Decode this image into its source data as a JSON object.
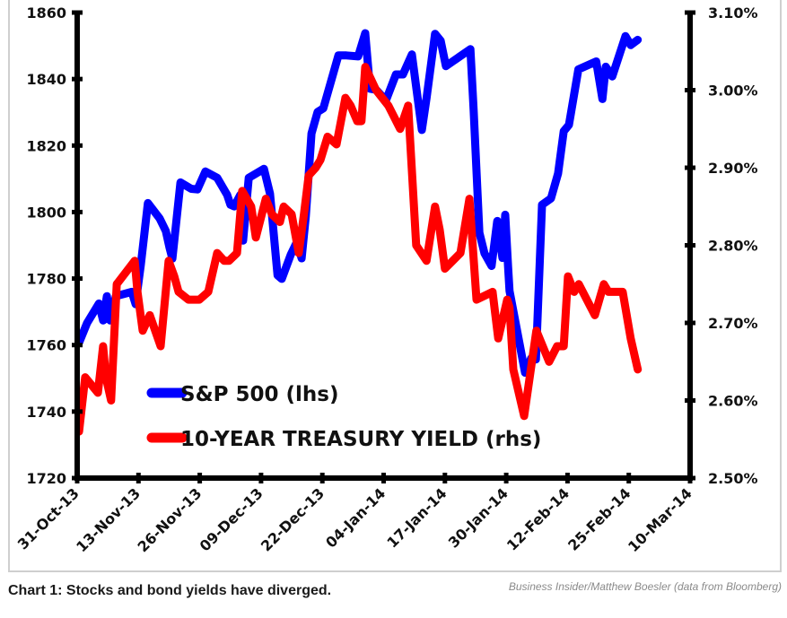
{
  "chart_data": {
    "type": "line",
    "title": "",
    "xlabel": "",
    "ylabel": "",
    "x_axis": {
      "type": "date",
      "start_day_offset": 0,
      "end_day_offset": 130,
      "tick_step_days": 13,
      "tick_labels": [
        "31-Oct-13",
        "13-Nov-13",
        "26-Nov-13",
        "09-Dec-13",
        "22-Dec-13",
        "04-Jan-14",
        "17-Jan-14",
        "30-Jan-14",
        "12-Feb-14",
        "25-Feb-14",
        "10-Mar-14"
      ]
    },
    "y_left": {
      "ylim": [
        1720,
        1860
      ],
      "tick_values": [
        1720,
        1740,
        1760,
        1780,
        1800,
        1820,
        1840,
        1860
      ],
      "tick_labels": [
        "1720",
        "1740",
        "1760",
        "1780",
        "1800",
        "1820",
        "1840",
        "1860"
      ]
    },
    "y_right": {
      "ylim": [
        2.5,
        3.1
      ],
      "tick_values": [
        2.5,
        2.6,
        2.7,
        2.8,
        2.9,
        3.0,
        3.1
      ],
      "tick_labels": [
        "2.50%",
        "2.60%",
        "2.70%",
        "2.80%",
        "2.90%",
        "3.00%",
        "3.10%"
      ]
    },
    "grid": false,
    "legend_position": "bottom-left",
    "series": [
      {
        "name": "S&P 500 (lhs)",
        "axis": "left",
        "color": "#0000ff",
        "x": [
          0.4,
          2.1,
          4.6,
          5.5,
          6.3,
          7.0,
          8.2,
          11.6,
          12.4,
          13.5,
          15.0,
          17.5,
          18.8,
          19.6,
          20.2,
          21.9,
          24.2,
          25.5,
          27.2,
          29.7,
          31.8,
          32.5,
          33.3,
          34.6,
          35.2,
          36.4,
          39.6,
          40.9,
          42.5,
          43.4,
          45.3,
          46.6,
          47.6,
          48.5,
          49.7,
          51.0,
          52.2,
          55.4,
          57.1,
          59.6,
          61.1,
          62.1,
          63.4,
          65.5,
          67.6,
          69.1,
          71.0,
          73.1,
          74.1,
          75.9,
          77.1,
          78.2,
          83.4,
          84.1,
          85.3,
          86.4,
          87.9,
          89.1,
          90.2,
          90.8,
          91.4,
          91.7,
          95.0,
          96.3,
          97.3,
          98.6,
          100.5,
          102.0,
          103.2,
          104.3,
          106.3,
          110.1,
          111.4,
          112.1,
          113.5,
          116.3,
          117.4,
          118.9
        ],
        "y": [
          1760.7,
          1766.6,
          1772.5,
          1767.4,
          1774.7,
          1767.4,
          1774.7,
          1776.0,
          1772.3,
          1784.1,
          1802.7,
          1798.1,
          1794.3,
          1789.2,
          1786.0,
          1808.9,
          1807.0,
          1806.8,
          1812.2,
          1810.3,
          1805.2,
          1802.2,
          1801.7,
          1805.2,
          1791.4,
          1810.3,
          1813.0,
          1805.5,
          1781.0,
          1779.9,
          1787.2,
          1791.0,
          1786.1,
          1798.8,
          1823.6,
          1830.1,
          1831.2,
          1847.1,
          1847.1,
          1846.8,
          1853.8,
          1837.1,
          1836.8,
          1833.6,
          1841.4,
          1841.4,
          1847.4,
          1824.7,
          1834.2,
          1853.6,
          1851.5,
          1843.9,
          1849.0,
          1830.7,
          1793.8,
          1787.6,
          1783.8,
          1797.3,
          1786.2,
          1799.2,
          1783.5,
          1776.3,
          1751.7,
          1756.0,
          1755.7,
          1802.2,
          1804.1,
          1811.6,
          1824.3,
          1826.2,
          1842.9,
          1845.3,
          1834.0,
          1843.7,
          1840.8,
          1852.9,
          1850.2,
          1851.8
        ]
      },
      {
        "name": "10-YEAR TREASURY YIELD (rhs)",
        "axis": "right",
        "color": "#ff0000",
        "x": [
          0.4,
          1.7,
          4.4,
          5.5,
          6.1,
          7.2,
          8.4,
          12.2,
          12.8,
          13.9,
          15.4,
          17.7,
          19.4,
          20.6,
          21.5,
          23.6,
          25.9,
          27.8,
          29.7,
          31.2,
          32.2,
          33.9,
          35.0,
          36.9,
          37.9,
          40.0,
          41.3,
          43.0,
          43.8,
          45.5,
          47.0,
          48.1,
          49.1,
          50.6,
          51.6,
          53.1,
          55.0,
          56.9,
          58.0,
          59.4,
          60.3,
          61.1,
          63.4,
          64.7,
          66.0,
          68.5,
          70.2,
          71.9,
          74.1,
          75.9,
          76.9,
          78.0,
          81.3,
          83.2,
          84.7,
          88.1,
          89.3,
          91.2,
          91.7,
          92.5,
          94.8,
          97.4,
          100.1,
          101.8,
          103.2,
          104.1,
          105.4,
          106.4,
          109.8,
          111.7,
          112.7,
          115.7,
          117.4,
          118.9
        ],
        "y": [
          2.56,
          2.63,
          2.61,
          2.67,
          2.63,
          2.6,
          2.75,
          2.78,
          2.74,
          2.69,
          2.71,
          2.67,
          2.78,
          2.76,
          2.74,
          2.73,
          2.73,
          2.74,
          2.79,
          2.78,
          2.78,
          2.79,
          2.87,
          2.85,
          2.81,
          2.86,
          2.84,
          2.83,
          2.85,
          2.84,
          2.79,
          2.84,
          2.89,
          2.9,
          2.91,
          2.94,
          2.93,
          2.99,
          2.98,
          2.96,
          2.96,
          3.03,
          3.0,
          2.99,
          2.98,
          2.95,
          2.98,
          2.8,
          2.78,
          2.85,
          2.82,
          2.77,
          2.79,
          2.86,
          2.73,
          2.74,
          2.68,
          2.73,
          2.72,
          2.64,
          2.58,
          2.69,
          2.65,
          2.67,
          2.67,
          2.76,
          2.74,
          2.75,
          2.71,
          2.75,
          2.74,
          2.74,
          2.68,
          2.64
        ]
      }
    ]
  },
  "caption": "Chart 1: Stocks and bond yields have diverged.",
  "source": "Business Insider/Matthew Boesler (data from Bloomberg)"
}
